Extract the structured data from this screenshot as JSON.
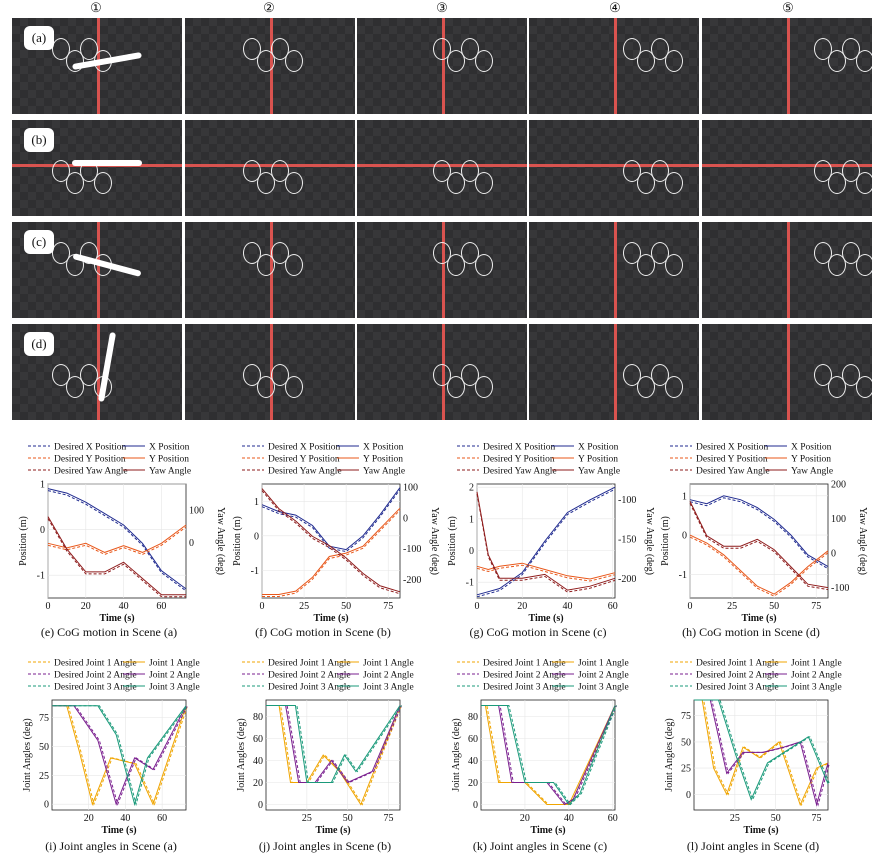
{
  "columns": [
    "①",
    "②",
    "③",
    "④",
    "⑤"
  ],
  "rows": [
    "(a)",
    "(b)",
    "(c)",
    "(d)"
  ],
  "cog_plots": [
    {
      "caption": "(e) CoG motion in Scene (a)",
      "legend": [
        "Desired X Position",
        "X Position",
        "Desired Y Position",
        "Y Position",
        "Desired Yaw Angle",
        "Yaw Angle"
      ],
      "xlabel": "Time (s)",
      "ylabel": "Position (m)",
      "y2label": "Yaw Angle (deg)",
      "xticks": [
        0,
        20,
        40,
        60
      ],
      "yticks": [
        -1,
        0,
        1
      ],
      "y2ticks": [
        0,
        100
      ],
      "xlim": [
        0,
        73
      ],
      "ylim": [
        -1.5,
        1
      ],
      "y2lim": [
        -170,
        180
      ],
      "x": [
        0,
        10,
        20,
        30,
        40,
        50,
        60,
        73
      ],
      "pos_x": [
        0.9,
        0.8,
        0.6,
        0.35,
        0.1,
        -0.3,
        -0.9,
        -1.3
      ],
      "pos_y": [
        -0.3,
        -0.4,
        -0.3,
        -0.5,
        -0.35,
        -0.5,
        -0.3,
        0.1
      ],
      "yaw": [
        80,
        -20,
        -90,
        -90,
        -60,
        -110,
        -160,
        -160
      ]
    },
    {
      "caption": "(f) CoG motion in Scene (b)",
      "legend": [
        "Desired X Position",
        "X Position",
        "Desired Y Position",
        "Y Position",
        "Desired Yaw Angle",
        "Yaw Angle"
      ],
      "xlabel": "Time (s)",
      "ylabel": "Position (m)",
      "y2label": "Yaw Angle (deg)",
      "xticks": [
        0,
        25,
        50,
        75
      ],
      "yticks": [
        -1,
        0,
        1
      ],
      "y2ticks": [
        -200,
        -100,
        0,
        100
      ],
      "xlim": [
        0,
        82
      ],
      "ylim": [
        -1.8,
        1.5
      ],
      "y2lim": [
        -260,
        110
      ],
      "x": [
        0,
        10,
        20,
        30,
        40,
        50,
        60,
        70,
        82
      ],
      "pos_x": [
        0.9,
        0.7,
        0.6,
        0.3,
        -0.3,
        -0.4,
        0,
        0.6,
        1.4
      ],
      "pos_y": [
        -1.7,
        -1.7,
        -1.6,
        -1.2,
        -0.6,
        -0.5,
        -0.3,
        0.2,
        0.8
      ],
      "yaw": [
        95,
        30,
        -10,
        -60,
        -90,
        -130,
        -180,
        -220,
        -240
      ]
    },
    {
      "caption": "(g) CoG motion in Scene (c)",
      "legend": [
        "Desired X Position",
        "X Position",
        "Desired Y Position",
        "Y Position",
        "Desired Yaw Angle",
        "Yaw Angle"
      ],
      "xlabel": "Time (s)",
      "ylabel": "Position (m)",
      "y2label": "Yaw Angle (deg)",
      "xticks": [
        0,
        20,
        40,
        60
      ],
      "yticks": [
        -1,
        0,
        1,
        2
      ],
      "y2ticks": [
        -200,
        -150,
        -100
      ],
      "xlim": [
        0,
        61
      ],
      "ylim": [
        -1.5,
        2.1
      ],
      "y2lim": [
        -225,
        -80
      ],
      "x": [
        0,
        5,
        10,
        20,
        30,
        40,
        50,
        61
      ],
      "pos_x": [
        -1.4,
        -1.3,
        -1.2,
        -0.7,
        0.3,
        1.2,
        1.6,
        2.0
      ],
      "pos_y": [
        -0.5,
        -0.6,
        -0.5,
        -0.4,
        -0.6,
        -0.8,
        -0.9,
        -0.7
      ],
      "yaw": [
        -90,
        -170,
        -200,
        -200,
        -195,
        -215,
        -210,
        -200
      ]
    },
    {
      "caption": "(h) CoG motion in Scene (d)",
      "legend": [
        "Desired X Position",
        "X Position",
        "Desired Y Position",
        "Y Position",
        "Desired Yaw Angle",
        "Yaw Angle"
      ],
      "xlabel": "Time (s)",
      "ylabel": "Position (m)",
      "y2label": "Yaw Angle (deg)",
      "xticks": [
        0,
        25,
        50,
        75
      ],
      "yticks": [
        -1,
        0,
        1
      ],
      "y2ticks": [
        -100,
        0,
        100,
        200
      ],
      "xlim": [
        0,
        82
      ],
      "ylim": [
        -1.6,
        1.3
      ],
      "y2lim": [
        -130,
        200
      ],
      "x": [
        0,
        10,
        20,
        30,
        40,
        50,
        60,
        70,
        82
      ],
      "pos_x": [
        0.9,
        0.8,
        1.0,
        0.9,
        0.7,
        0.4,
        0,
        -0.5,
        -0.8
      ],
      "pos_y": [
        0,
        -0.2,
        -0.5,
        -0.9,
        -1.3,
        -1.5,
        -1.2,
        -0.8,
        -0.4
      ],
      "yaw": [
        150,
        50,
        20,
        20,
        40,
        10,
        -40,
        -90,
        -100
      ]
    }
  ],
  "joint_plots": [
    {
      "caption": "(i) Joint angles in Scene (a)",
      "legend": [
        "Desired Joint 1 Angle",
        "Joint 1 Angle",
        "Desired Joint 2 Angle",
        "Joint 2 Angle",
        "Desired Joint 3 Angle",
        "Joint 3 Angle"
      ],
      "xlabel": "Time (s)",
      "ylabel": "Joint Angles (deg)",
      "xticks": [
        20,
        40,
        60
      ],
      "yticks": [
        0,
        25,
        50,
        75
      ],
      "xlim": [
        0,
        73
      ],
      "ylim": [
        -5,
        90
      ],
      "joint1": [
        [
          0,
          85
        ],
        [
          8,
          85
        ],
        [
          15,
          45
        ],
        [
          22,
          0
        ],
        [
          32,
          40
        ],
        [
          45,
          35
        ],
        [
          55,
          0
        ],
        [
          73,
          85
        ]
      ],
      "joint2": [
        [
          0,
          85
        ],
        [
          12,
          85
        ],
        [
          25,
          55
        ],
        [
          35,
          0
        ],
        [
          45,
          40
        ],
        [
          55,
          30
        ],
        [
          73,
          85
        ]
      ],
      "joint3": [
        [
          0,
          85
        ],
        [
          25,
          85
        ],
        [
          35,
          60
        ],
        [
          45,
          0
        ],
        [
          52,
          40
        ],
        [
          73,
          85
        ]
      ]
    },
    {
      "caption": "(j) Joint angles in Scene (b)",
      "legend": [
        "Desired Joint 1 Angle",
        "Joint 1 Angle",
        "Desired Joint 2 Angle",
        "Joint 2 Angle",
        "Desired Joint 3 Angle",
        "Joint 3 Angle"
      ],
      "xlabel": "Time (s)",
      "ylabel": "Joint Angles (deg)",
      "xticks": [
        25,
        50,
        75
      ],
      "yticks": [
        0,
        20,
        40,
        60,
        80
      ],
      "xlim": [
        0,
        82
      ],
      "ylim": [
        -5,
        95
      ],
      "joint1": [
        [
          0,
          90
        ],
        [
          8,
          90
        ],
        [
          15,
          20
        ],
        [
          25,
          20
        ],
        [
          35,
          45
        ],
        [
          45,
          30
        ],
        [
          58,
          0
        ],
        [
          82,
          90
        ]
      ],
      "joint2": [
        [
          0,
          90
        ],
        [
          12,
          90
        ],
        [
          20,
          20
        ],
        [
          30,
          20
        ],
        [
          40,
          40
        ],
        [
          50,
          20
        ],
        [
          65,
          30
        ],
        [
          82,
          90
        ]
      ],
      "joint3": [
        [
          0,
          90
        ],
        [
          18,
          90
        ],
        [
          25,
          20
        ],
        [
          40,
          20
        ],
        [
          48,
          45
        ],
        [
          55,
          30
        ],
        [
          82,
          90
        ]
      ]
    },
    {
      "caption": "(k) Joint angles in Scene (c)",
      "legend": [
        "Desired Joint 1 Angle",
        "Joint 1 Angle",
        "Desired Joint 2 Angle",
        "Joint 2 Angle",
        "Desired Joint 3 Angle",
        "Joint 3 Angle"
      ],
      "xlabel": "Time (s)",
      "ylabel": "Joint Angles (deg)",
      "xticks": [
        20,
        40,
        60
      ],
      "yticks": [
        0,
        20,
        40,
        60,
        80
      ],
      "xlim": [
        0,
        61
      ],
      "ylim": [
        -5,
        95
      ],
      "joint1": [
        [
          0,
          90
        ],
        [
          2,
          90
        ],
        [
          8,
          20
        ],
        [
          20,
          20
        ],
        [
          30,
          0
        ],
        [
          40,
          0
        ],
        [
          61,
          90
        ]
      ],
      "joint2": [
        [
          0,
          90
        ],
        [
          8,
          90
        ],
        [
          14,
          20
        ],
        [
          30,
          20
        ],
        [
          38,
          0
        ],
        [
          42,
          5
        ],
        [
          61,
          90
        ]
      ],
      "joint3": [
        [
          0,
          90
        ],
        [
          12,
          90
        ],
        [
          20,
          20
        ],
        [
          33,
          20
        ],
        [
          40,
          0
        ],
        [
          45,
          10
        ],
        [
          61,
          90
        ]
      ]
    },
    {
      "caption": "(l) Joint angles in Scene (d)",
      "legend": [
        "Desired Joint 1 Angle",
        "Joint 1 Angle",
        "Desired Joint 2 Angle",
        "Joint 2 Angle",
        "Desired Joint 3 Angle",
        "Joint 3 Angle"
      ],
      "xlabel": "Time (s)",
      "ylabel": "Joint Angles (deg)",
      "xticks": [
        25,
        50,
        75
      ],
      "yticks": [
        0,
        25,
        50,
        75
      ],
      "xlim": [
        0,
        82
      ],
      "ylim": [
        -15,
        90
      ],
      "joint1": [
        [
          0,
          90
        ],
        [
          5,
          90
        ],
        [
          12,
          25
        ],
        [
          20,
          0
        ],
        [
          30,
          45
        ],
        [
          40,
          35
        ],
        [
          52,
          50
        ],
        [
          65,
          -10
        ],
        [
          75,
          25
        ],
        [
          82,
          30
        ]
      ],
      "joint2": [
        [
          0,
          90
        ],
        [
          10,
          90
        ],
        [
          20,
          20
        ],
        [
          30,
          40
        ],
        [
          42,
          40
        ],
        [
          55,
          45
        ],
        [
          65,
          50
        ],
        [
          75,
          -10
        ],
        [
          82,
          30
        ]
      ],
      "joint3": [
        [
          0,
          90
        ],
        [
          15,
          90
        ],
        [
          25,
          40
        ],
        [
          35,
          -5
        ],
        [
          45,
          30
        ],
        [
          55,
          40
        ],
        [
          70,
          55
        ],
        [
          82,
          10
        ]
      ]
    }
  ],
  "colors": {
    "x": "#1f2a8f",
    "y": "#e8571a",
    "yaw": "#8e1b1b",
    "j1": "#f0a500",
    "j2": "#7a1f8f",
    "j3": "#1a9a7a"
  }
}
